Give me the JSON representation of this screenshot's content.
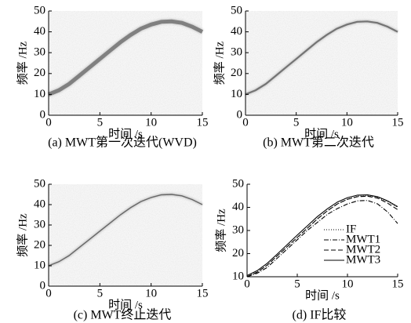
{
  "chart_data": [
    {
      "type": "spectrogram",
      "caption": "(a) MWT第一次迭代(WVD)",
      "xlabel": "时间 /s",
      "ylabel": "频率 /Hz",
      "xlim": [
        0,
        15
      ],
      "ylim": [
        0,
        50
      ],
      "xticks": [
        0,
        5,
        10,
        15
      ],
      "yticks": [
        0,
        10,
        20,
        30,
        40,
        50
      ],
      "color": "#666666",
      "x": [
        0,
        1,
        2,
        3,
        4,
        5,
        6,
        7,
        8,
        9,
        10,
        11,
        12,
        13,
        14,
        15
      ],
      "values": [
        10,
        12,
        15,
        19,
        23,
        27,
        31,
        35,
        38.5,
        41.5,
        43.5,
        44.8,
        45,
        44.3,
        42.5,
        40
      ]
    },
    {
      "type": "spectrogram",
      "caption": "(b) MWT第二次迭代",
      "xlabel": "时间 /s",
      "ylabel": "频率 /Hz",
      "xlim": [
        0,
        15
      ],
      "ylim": [
        0,
        50
      ],
      "xticks": [
        0,
        5,
        10,
        15
      ],
      "yticks": [
        0,
        10,
        20,
        30,
        40,
        50
      ],
      "color": "#555555",
      "x": [
        0,
        1,
        2,
        3,
        4,
        5,
        6,
        7,
        8,
        9,
        10,
        11,
        12,
        13,
        14,
        15
      ],
      "values": [
        10,
        12,
        15,
        19,
        23,
        27,
        31,
        35,
        38.5,
        41.5,
        43.5,
        44.8,
        45,
        44.3,
        42.5,
        40
      ]
    },
    {
      "type": "spectrogram",
      "caption": "(c) MWT终止迭代",
      "xlabel": "时间 /s",
      "ylabel": "频率 /Hz",
      "xlim": [
        0,
        15
      ],
      "ylim": [
        0,
        50
      ],
      "xticks": [
        0,
        5,
        10,
        15
      ],
      "yticks": [
        0,
        10,
        20,
        30,
        40,
        50
      ],
      "color": "#444444",
      "x": [
        0,
        1,
        2,
        3,
        4,
        5,
        6,
        7,
        8,
        9,
        10,
        11,
        12,
        13,
        14,
        15
      ],
      "values": [
        10,
        12,
        15,
        19,
        23,
        27,
        31,
        35,
        38.5,
        41.5,
        43.5,
        44.8,
        45,
        44.3,
        42.5,
        40
      ]
    },
    {
      "type": "line",
      "caption": "(d) IF比较",
      "xlabel": "时间 /s",
      "ylabel": "频率 /Hz",
      "xlim": [
        0,
        15
      ],
      "ylim": [
        10,
        50
      ],
      "xticks": [
        0,
        5,
        10,
        15
      ],
      "yticks": [
        10,
        20,
        30,
        40,
        50
      ],
      "x": [
        0,
        1,
        2,
        3,
        4,
        5,
        6,
        7,
        8,
        9,
        10,
        11,
        12,
        13,
        14,
        15
      ],
      "series": [
        {
          "name": "IF",
          "color": "#000000",
          "dash": "dotted",
          "values": [
            10,
            12,
            15,
            19,
            23,
            27,
            31,
            35,
            38.5,
            41.5,
            43.5,
            44.8,
            45,
            44.3,
            42.5,
            40
          ]
        },
        {
          "name": "MWT1",
          "color": "#000000",
          "dash": "dashdot",
          "values": [
            10,
            11.5,
            14,
            18,
            22,
            26,
            30,
            33.5,
            37,
            39.5,
            41.5,
            42.8,
            43,
            41.5,
            38,
            33
          ]
        },
        {
          "name": "MWT2",
          "color": "#000000",
          "dash": "dashed",
          "values": [
            10,
            12,
            15,
            19,
            23,
            27,
            31,
            35,
            38.5,
            41.5,
            43.5,
            44.6,
            44.8,
            44,
            41.8,
            39
          ]
        },
        {
          "name": "MWT3",
          "color": "#000000",
          "dash": "solid",
          "values": [
            10.5,
            12.6,
            15.8,
            19.8,
            23.9,
            28,
            32,
            36,
            39.4,
            42.3,
            44.2,
            45.3,
            45.4,
            44.6,
            42.8,
            40.3
          ]
        }
      ]
    }
  ]
}
